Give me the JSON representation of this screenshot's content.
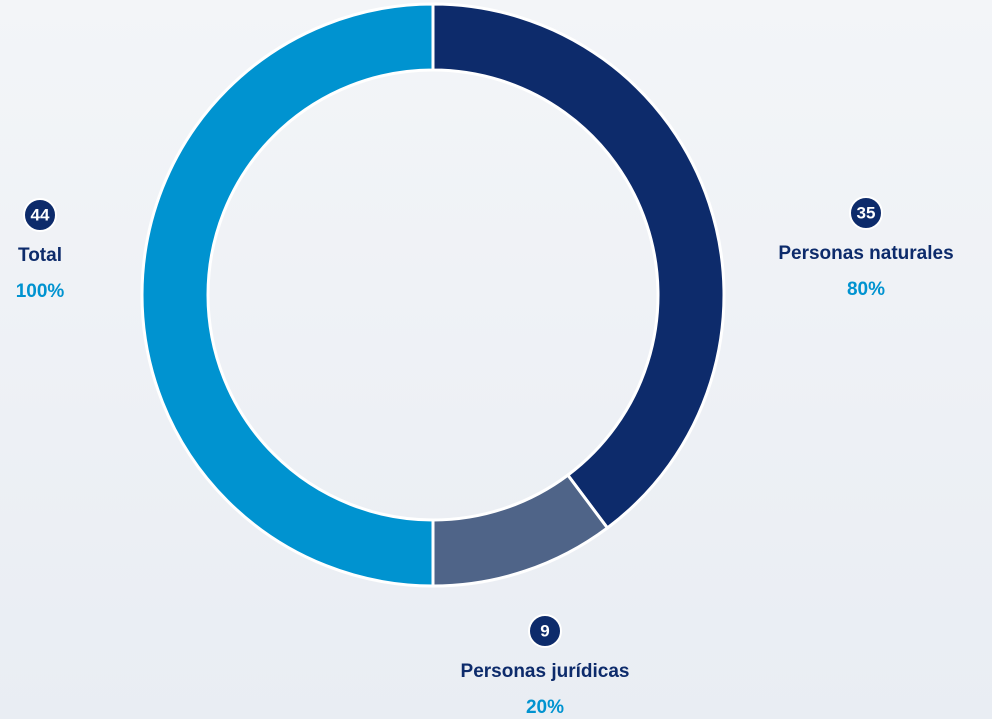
{
  "chart_data": {
    "type": "donut",
    "categories": [
      "Personas naturales",
      "Personas jurídicas",
      "Total"
    ],
    "values": [
      35,
      9,
      44
    ],
    "percent_labels": [
      "80%",
      "20%",
      "100%"
    ],
    "colors": [
      "#0d2b6b",
      "#4f6488",
      "#0093d0"
    ]
  }
}
